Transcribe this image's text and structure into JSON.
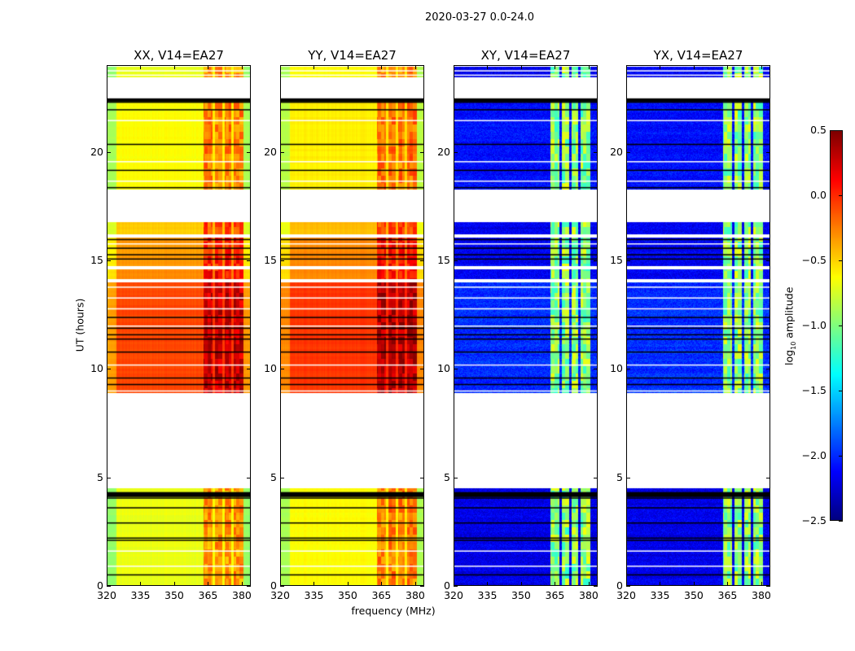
{
  "chart_data": {
    "type": "heatmap",
    "title": "2020-03-27 0.0-24.0",
    "xlabel": "frequency (MHz)",
    "ylabel": "UT (hours)",
    "xlim": [
      320,
      384
    ],
    "ylim": [
      0,
      24
    ],
    "xticks": [
      "320",
      "335",
      "350",
      "365",
      "380"
    ],
    "yticks": [
      "0",
      "5",
      "10",
      "15",
      "20"
    ],
    "colorbar": {
      "label": "log10 amplitude",
      "label_main": "log",
      "label_sub": "10",
      "label_rest": " amplitude",
      "range": [
        -2.5,
        0.5
      ],
      "ticks": [
        "0.5",
        "0.0",
        "−0.5",
        "−1.0",
        "−1.5",
        "−2.0",
        "−2.5"
      ],
      "colormap": "jet"
    },
    "rfi_band_mhz": [
      363,
      381
    ],
    "time_blocks_hours": [
      [
        0.0,
        4.5
      ],
      [
        8.9,
        14.0
      ],
      [
        14.15,
        14.6
      ],
      [
        14.75,
        16.1
      ],
      [
        16.25,
        16.8
      ],
      [
        18.3,
        22.5
      ],
      [
        23.5,
        24.0
      ]
    ],
    "flagged_rows_black_hours": [
      0.5,
      2.1,
      2.2,
      2.9,
      3.6,
      4.05,
      4.15,
      4.2,
      9.3,
      9.6,
      10.8,
      11.4,
      11.6,
      11.9,
      12.4,
      15.1,
      15.3,
      15.6,
      16.0,
      18.4,
      19.2,
      20.4,
      22.0,
      22.35,
      22.45
    ],
    "flagged_rows_white_hours": [
      0.9,
      1.6,
      9.0,
      10.2,
      12.0,
      12.8,
      13.3,
      13.8,
      14.1,
      15.8,
      18.7,
      19.6,
      21.5,
      23.6,
      23.8
    ],
    "panels": [
      {
        "title": "XX, V14=EA27",
        "levels": {
          "base": [
            -0.7,
            -0.1,
            -0.3,
            -0.35,
            -0.5,
            -0.65,
            -0.7
          ],
          "band": -0.25
        }
      },
      {
        "title": "YY, V14=EA27",
        "levels": {
          "base": [
            -0.65,
            -0.05,
            -0.3,
            -0.3,
            -0.45,
            -0.6,
            -0.65
          ],
          "band": -0.2
        }
      },
      {
        "title": "XY, V14=EA27",
        "levels": {
          "base": [
            -2.25,
            -2.05,
            -2.2,
            -2.2,
            -2.25,
            -2.15,
            -2.2
          ],
          "band": -1.0
        }
      },
      {
        "title": "YX, V14=EA27",
        "levels": {
          "base": [
            -2.25,
            -2.05,
            -2.2,
            -2.2,
            -2.25,
            -2.15,
            -2.2
          ],
          "band": -1.0
        }
      }
    ]
  }
}
